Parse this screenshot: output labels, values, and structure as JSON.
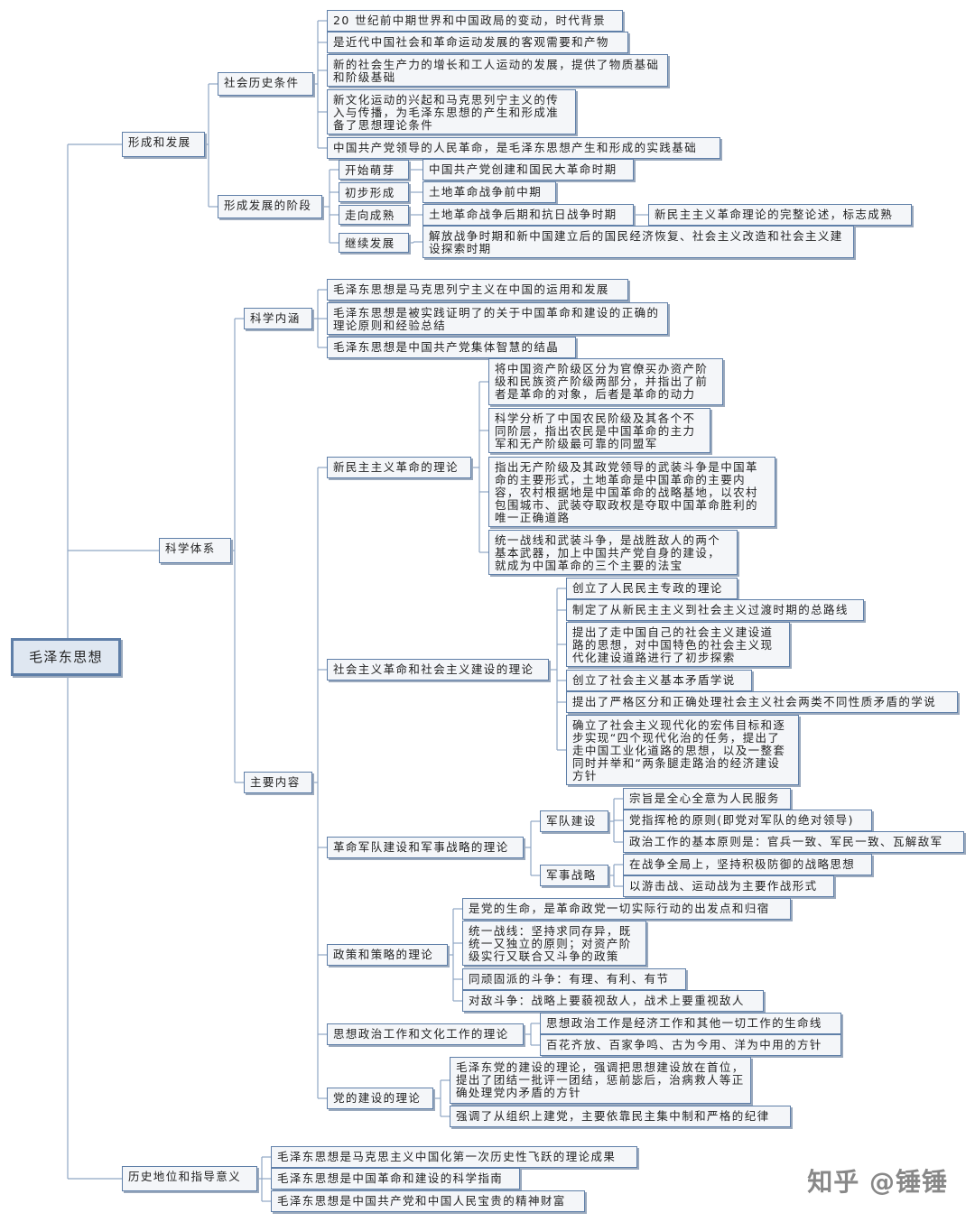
{
  "root": {
    "label": "毛泽东思想",
    "children": [
      {
        "label": "形成和发展",
        "children": [
          {
            "label": "社会历史条件",
            "children": [
              {
                "label": "20 世纪前中期世界和中国政局的变动，时代背景"
              },
              {
                "label": "是近代中国社会和革命运动发展的客观需要和产物"
              },
              {
                "label": "新的社会生产力的增长和工人运动的发展，提供了物质基础和阶级基础"
              },
              {
                "label": "新文化运动的兴起和马克思列宁主义的传入与传播，为毛泽东思想的产生和形成准备了思想理论条件"
              },
              {
                "label": "中国共产党领导的人民革命，是毛泽东思想产生和形成的实践基础"
              }
            ]
          },
          {
            "label": "形成发展的阶段",
            "children": [
              {
                "label": "开始萌芽",
                "children": [
                  {
                    "label": "中国共产党创建和国民大革命时期"
                  }
                ]
              },
              {
                "label": "初步形成",
                "children": [
                  {
                    "label": "土地革命战争前中期"
                  }
                ]
              },
              {
                "label": "走向成熟",
                "children": [
                  {
                    "label": "土地革命战争后期和抗日战争时期",
                    "children": [
                      {
                        "label": "新民主主义革命理论的完整论述，标志成熟"
                      }
                    ]
                  }
                ]
              },
              {
                "label": "继续发展",
                "children": [
                  {
                    "label": "解放战争时期和新中国建立后的国民经济恢复、社会主义改造和社会主义建设探索时期"
                  }
                ]
              }
            ]
          }
        ]
      },
      {
        "label": "科学体系",
        "children": [
          {
            "label": "科学内涵",
            "children": [
              {
                "label": "毛泽东思想是马克思列宁主义在中国的运用和发展"
              },
              {
                "label": "毛泽东思想是被实践证明了的关于中国革命和建设的正确的理论原则和经验总结"
              },
              {
                "label": "毛泽东思想是中国共产党集体智慧的结晶"
              }
            ]
          },
          {
            "label": "主要内容",
            "children": [
              {
                "label": "新民主主义革命的理论",
                "children": [
                  {
                    "label": "将中国资产阶级区分为官僚买办资产阶级和民族资产阶级两部分，并指出了前者是革命的对象，后者是革命的动力"
                  },
                  {
                    "label": "科学分析了中国农民阶级及其各个不同阶层，指出农民是中国革命的主力军和无产阶级最可靠的同盟军"
                  },
                  {
                    "label": "指出无产阶级及其政党领导的武装斗争是中国革命的主要形式，土地革命是中国革命的主要内容，农村根据地是中国革命的战略基地，以农村包围城市、武装夺取政权是夺取中国革命胜利的唯一正确道路"
                  },
                  {
                    "label": "统一战线和武装斗争，是战胜敌人的两个基本武器，加上中国共产党自身的建设，就成为中国革命的三个主要的法宝"
                  }
                ]
              },
              {
                "label": "社会主义革命和社会主义建设的理论",
                "children": [
                  {
                    "label": "创立了人民民主专政的理论"
                  },
                  {
                    "label": "制定了从新民主主义到社会主义过渡时期的总路线"
                  },
                  {
                    "label": "提出了走中国自己的社会主义建设道路的思想，对中国特色的社会主义现代化建设道路进行了初步探索"
                  },
                  {
                    "label": "创立了社会主义基本矛盾学说"
                  },
                  {
                    "label": "提出了严格区分和正确处理社会主义社会两类不同性质矛盾的学说"
                  },
                  {
                    "label": "确立了社会主义现代化的宏伟目标和逐步实现“四个现代化治的任务，提出了走中国工业化道路的思想，以及一整套同时并举和“两条腿走路治的经济建设方针"
                  }
                ]
              },
              {
                "label": "革命军队建设和军事战略的理论",
                "children": [
                  {
                    "label": "军队建设",
                    "children": [
                      {
                        "label": "宗旨是全心全意为人民服务"
                      },
                      {
                        "label": "党指挥枪的原则(即党对军队的绝对领导)"
                      },
                      {
                        "label": "政治工作的基本原则是：官兵一致、军民一致、瓦解敌军"
                      }
                    ]
                  },
                  {
                    "label": "军事战略",
                    "children": [
                      {
                        "label": "在战争全局上，坚持积极防御的战略思想"
                      },
                      {
                        "label": "以游击战、运动战为主要作战形式"
                      }
                    ]
                  }
                ]
              },
              {
                "label": "政策和策略的理论",
                "children": [
                  {
                    "label": "是党的生命，是革命政党一切实际行动的出发点和归宿"
                  },
                  {
                    "label": "统一战线：坚持求同存异，既统一又独立的原则；对资产阶级实行又联合又斗争的政策"
                  },
                  {
                    "label": "同顽固派的斗争：有理、有利、有节"
                  },
                  {
                    "label": "对敌斗争：战略上要藐视敌人，战术上要重视敌人"
                  }
                ]
              },
              {
                "label": "思想政治工作和文化工作的理论",
                "children": [
                  {
                    "label": "思想政治工作是经济工作和其他一切工作的生命线"
                  },
                  {
                    "label": "百花齐放、百家争鸣、古为今用、洋为中用的方针"
                  }
                ]
              },
              {
                "label": "党的建设的理论",
                "children": [
                  {
                    "label": "毛泽东党的建设的理论，强调把思想建设放在首位，提出了团结一批评一团结，惩前毖后，治病救人等正确处理党内矛盾的方针"
                  },
                  {
                    "label": "强调了从组织上建党，主要依靠民主集中制和严格的纪律"
                  }
                ]
              }
            ]
          }
        ]
      },
      {
        "label": "历史地位和指导意义",
        "children": [
          {
            "label": "毛泽东思想是马克思主义中国化第一次历史性飞跃的理论成果"
          },
          {
            "label": "毛泽东思想是中国革命和建设的科学指南"
          },
          {
            "label": "毛泽东思想是中国共产党和中国人民宝贵的精神财富"
          }
        ]
      }
    ]
  },
  "watermark": "知乎 @锤锤"
}
